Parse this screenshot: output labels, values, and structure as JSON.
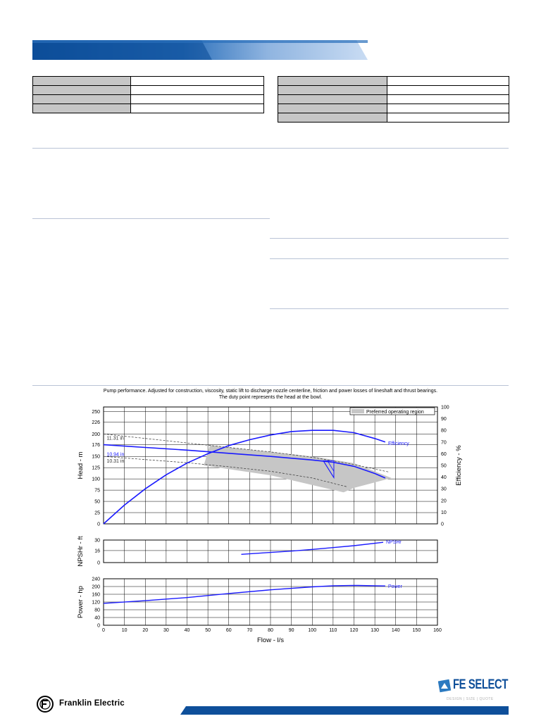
{
  "chart_data": {
    "type": "line",
    "title": "Pump performance. Adjusted for construction, viscosity, static lift to discharge nozzle centerline, friction and power losses of lineshaft and thrust bearings.",
    "subtitle": "The duty point represents the head at the bowl.",
    "xlabel": "Flow - l/s",
    "x_ticks": [
      0,
      10,
      20,
      30,
      40,
      50,
      60,
      70,
      80,
      90,
      100,
      110,
      120,
      130,
      140,
      150,
      160
    ],
    "xlim": [
      0,
      160
    ],
    "legend": {
      "label": "Preferred operating region",
      "position": "top-right"
    },
    "head_panel": {
      "ylabel": "Head - m",
      "ylim": [
        0,
        260
      ],
      "y_ticks": [
        0,
        25,
        50,
        75,
        100,
        125,
        150,
        176,
        200,
        226,
        250
      ],
      "y2label": "Efficiency - %",
      "y2lim": [
        0,
        100
      ],
      "y2_ticks": [
        0,
        10,
        20,
        30,
        40,
        50,
        60,
        70,
        80,
        90,
        100
      ],
      "impeller_labels": [
        "11.31 in",
        "10.94 in",
        "10.31 in"
      ],
      "head_curve": {
        "name": "10.94 in",
        "x": [
          0,
          20,
          40,
          60,
          80,
          100,
          110,
          120,
          130,
          135
        ],
        "y": [
          176,
          170,
          164,
          157,
          150,
          142,
          137,
          128,
          112,
          102
        ]
      },
      "max_dia_curve": {
        "name": "11.31 in",
        "x": [
          0,
          20,
          40,
          60,
          80,
          100,
          120,
          137
        ],
        "y": [
          200,
          190,
          180,
          170,
          160,
          148,
          132,
          115
        ]
      },
      "min_dia_curve": {
        "name": "10.31 in",
        "x": [
          0,
          20,
          40,
          60,
          80,
          100,
          117
        ],
        "y": [
          150,
          143,
          136,
          127,
          117,
          102,
          82
        ]
      },
      "efficiency_curve": {
        "name": "Efficiency",
        "x": [
          0,
          10,
          20,
          30,
          40,
          50,
          60,
          70,
          80,
          90,
          100,
          110,
          120,
          130,
          135
        ],
        "y": [
          0,
          16,
          30,
          42,
          52,
          60,
          67,
          72,
          76,
          79,
          80,
          80,
          78,
          73,
          70
        ]
      },
      "preferred_region": [
        [
          48,
          130
        ],
        [
          51,
          175
        ],
        [
          70,
          165
        ],
        [
          100,
          150
        ],
        [
          120,
          135
        ],
        [
          138,
          102
        ],
        [
          120,
          80
        ],
        [
          115,
          70
        ],
        [
          80,
          108
        ],
        [
          48,
          130
        ]
      ],
      "duty_point": {
        "x": 108,
        "y": 120
      }
    },
    "npsh_panel": {
      "ylabel": "NPSHr - ft",
      "ylim": [
        0,
        30
      ],
      "y_ticks": [
        0,
        16,
        30
      ],
      "curve": {
        "name": "NPSHr",
        "x": [
          66,
          80,
          90,
          100,
          110,
          120,
          134
        ],
        "y": [
          11,
          13.5,
          15.3,
          17.5,
          20,
          22.5,
          27
        ]
      }
    },
    "power_panel": {
      "ylabel": "Power - hp",
      "ylim": [
        0,
        240
      ],
      "y_ticks": [
        0,
        40,
        80,
        120,
        160,
        200,
        240
      ],
      "curve": {
        "name": "Power",
        "x": [
          0,
          20,
          40,
          60,
          80,
          100,
          110,
          120,
          130,
          135
        ],
        "y": [
          113,
          127,
          143,
          164,
          183,
          198,
          204,
          206,
          204,
          203
        ]
      }
    }
  },
  "colors": {
    "curve": "#1a1aff",
    "dash": "#333333",
    "region": "#c6c6c6",
    "grid": "#000000",
    "banner_dark": "#0e4f9a",
    "banner_light": "#a9c6ea",
    "footer_bar": "#0e4f9a"
  },
  "branding": {
    "company": "Franklin Electric",
    "product": "FE SELECT",
    "product_tagline": "DESIGN | SIZE | QUOTE"
  },
  "icons": [
    "franklin-electric-logo-icon",
    "fe-select-logo-icon"
  ]
}
